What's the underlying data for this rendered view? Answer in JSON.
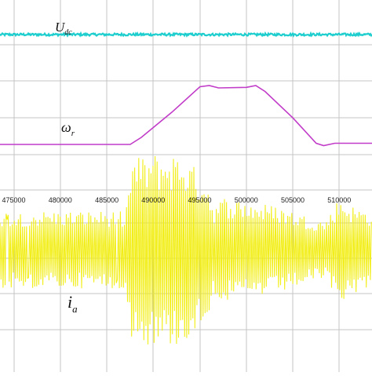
{
  "chart_data": {
    "type": "line",
    "grid": true,
    "xlabel": "",
    "ylabel": "",
    "x_ticks": [
      "475000",
      "480000",
      "485000",
      "490000",
      "495000",
      "500000",
      "505000",
      "510000"
    ],
    "xlim": [
      472000,
      512000
    ],
    "series": [
      {
        "name": "U_dc",
        "label_main": "U",
        "label_sub": "dc",
        "color": "#1ecece",
        "level": 0.93,
        "noise": 0.05,
        "points": [
          [
            472000,
            0.93
          ],
          [
            512000,
            0.93
          ]
        ]
      },
      {
        "name": "omega_r",
        "label_main": "ω",
        "label_sub": "r",
        "color": "#c13cc8",
        "points": [
          [
            472000,
            0.0
          ],
          [
            486000,
            0.0
          ],
          [
            487200,
            0.12
          ],
          [
            490500,
            0.55
          ],
          [
            493500,
            0.98
          ],
          [
            494500,
            1.0
          ],
          [
            495500,
            0.96
          ],
          [
            498500,
            0.97
          ],
          [
            499500,
            1.0
          ],
          [
            500500,
            0.9
          ],
          [
            503500,
            0.45
          ],
          [
            506000,
            0.02
          ],
          [
            506800,
            -0.02
          ],
          [
            508000,
            0.02
          ],
          [
            512000,
            0.02
          ]
        ]
      },
      {
        "name": "i_a",
        "label_main": "i",
        "label_sub": "a",
        "color": "#f2ee1a",
        "envelope": [
          [
            472000,
            0.4
          ],
          [
            485500,
            0.4
          ],
          [
            486200,
            0.95
          ],
          [
            488500,
            1.0
          ],
          [
            491500,
            1.0
          ],
          [
            493000,
            0.85
          ],
          [
            494200,
            0.75
          ],
          [
            495000,
            0.45
          ],
          [
            496000,
            0.55
          ],
          [
            499000,
            0.5
          ],
          [
            502000,
            0.45
          ],
          [
            505000,
            0.35
          ],
          [
            507000,
            0.3
          ],
          [
            508500,
            0.55
          ],
          [
            510000,
            0.45
          ],
          [
            512000,
            0.4
          ]
        ]
      }
    ]
  },
  "colors": {
    "background": "#ffffff",
    "grid": "#c4c4c4",
    "border": "#9a9a9a",
    "tick_text": "#222222"
  }
}
